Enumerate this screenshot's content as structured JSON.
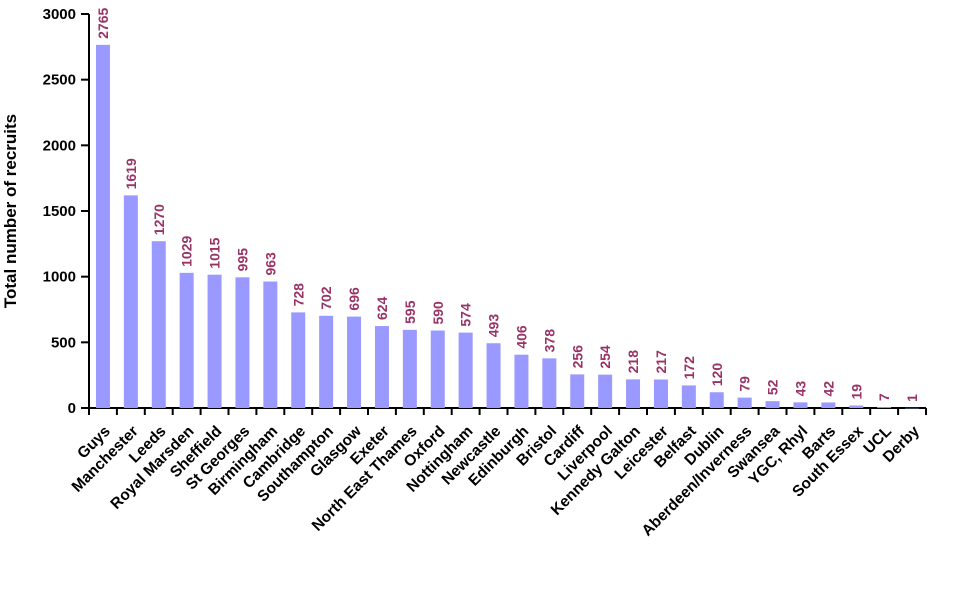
{
  "page": {
    "background_color": "#FFFFFF"
  },
  "chart_data": {
    "type": "bar",
    "title": "",
    "xlabel": "",
    "ylabel": "Total number of recruits",
    "ylim": [
      0,
      3000
    ],
    "yticks": [
      0,
      500,
      1000,
      1500,
      2000,
      2500,
      3000
    ],
    "grid": "off",
    "legend": "none",
    "data_labels": "above bars, rotated 90 degrees",
    "category_labels": "rotated 45 degrees",
    "categories": [
      "Guys",
      "Manchester",
      "Leeds",
      "Royal Marsden",
      "Sheffield",
      "St Georges",
      "Birmingham",
      "Cambridge",
      "Southampton",
      "Glasgow",
      "Exeter",
      "North East Thames",
      "Oxford",
      "Nottingham",
      "Newcastle",
      "Edinburgh",
      "Bristol",
      "Cardiff",
      "Liverpool",
      "Kennedy Galton",
      "Leicester",
      "Belfast",
      "Dublin",
      "Aberdeen/Inverness",
      "Swansea",
      "YGC, Rhyl",
      "Barts",
      "South Essex",
      "UCL",
      "Derby"
    ],
    "values": [
      2765,
      1619,
      1270,
      1029,
      1015,
      995,
      963,
      728,
      702,
      696,
      624,
      595,
      590,
      574,
      493,
      406,
      378,
      256,
      254,
      218,
      217,
      172,
      120,
      79,
      52,
      43,
      42,
      19,
      7,
      1
    ],
    "colors": {
      "bar_fill": "#9999FF",
      "value_label": "#993366",
      "axis": "#000000",
      "tick_label": "#000000"
    }
  }
}
